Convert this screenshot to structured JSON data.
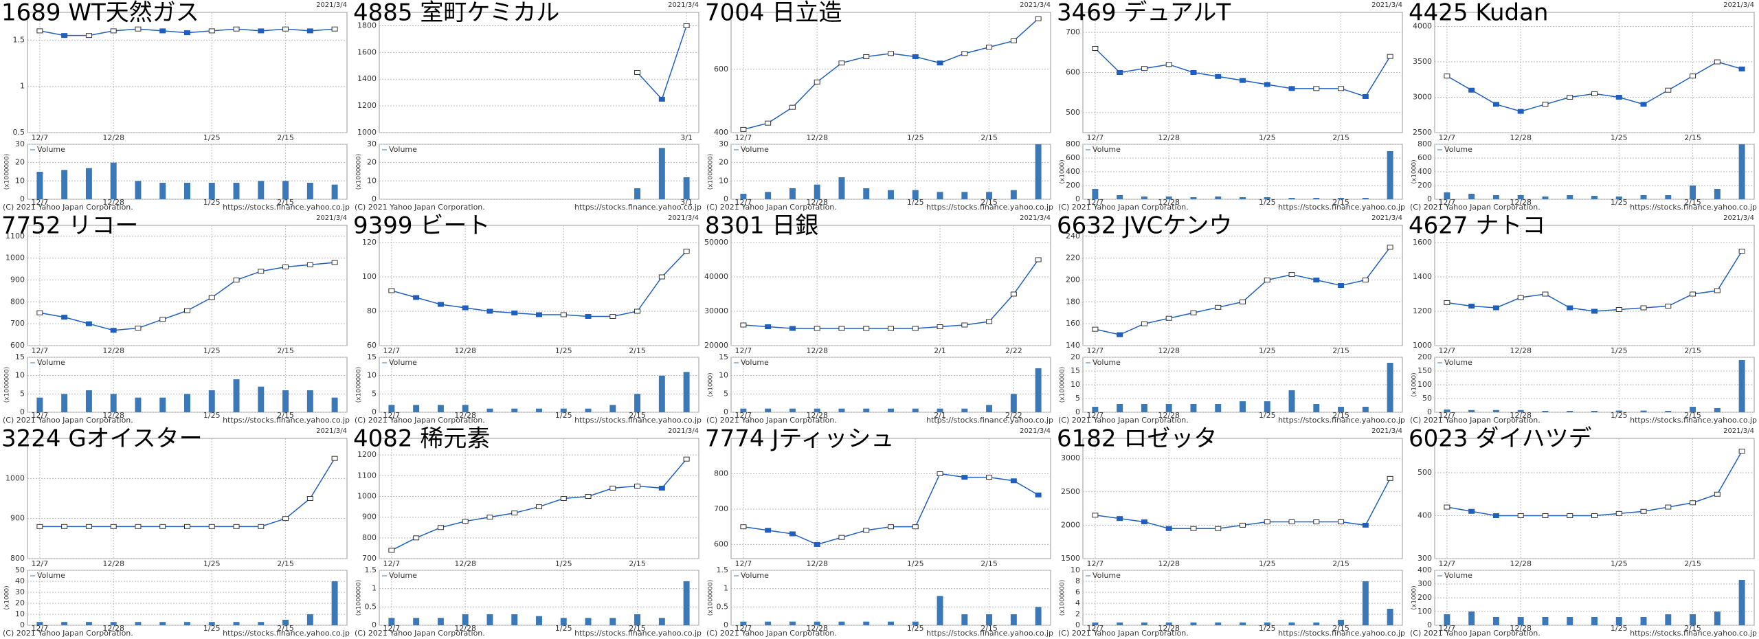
{
  "footer": {
    "copyright": "(C) 2021 Yahoo Japan Corporation.",
    "url": "https://stocks.finance.yahoo.co.jp",
    "volume_legend": "Volume"
  },
  "chart_data": [
    {
      "type": "line",
      "title": "1689 WT天然ガス",
      "date": "2021/3/4",
      "categories": [
        "12/7",
        null,
        null,
        "12/28",
        null,
        null,
        null,
        "1/25",
        null,
        null,
        "2/15",
        null,
        null
      ],
      "values": [
        1.6,
        1.55,
        1.55,
        1.6,
        1.62,
        1.6,
        1.58,
        1.6,
        1.62,
        1.6,
        1.62,
        1.6,
        1.62
      ],
      "ylim": [
        0.5,
        1.8
      ],
      "yticks": [
        0.5,
        1,
        1.5
      ],
      "color": "#1f5fbf",
      "grid": true,
      "volume": {
        "label": "(x1000000)",
        "values": [
          15,
          16,
          17,
          20,
          10,
          9,
          9,
          9,
          9,
          10,
          10,
          9,
          8
        ],
        "ylim": [
          0,
          30
        ],
        "yticks": [
          0,
          10,
          20,
          30
        ],
        "color": "#3a78b8"
      }
    },
    {
      "type": "line",
      "title": "4885 室町ケミカル",
      "date": "2021/3/4",
      "categories": [
        null,
        null,
        null,
        null,
        null,
        null,
        null,
        null,
        null,
        null,
        null,
        null,
        "3/1"
      ],
      "values": [
        null,
        null,
        null,
        null,
        null,
        null,
        null,
        null,
        null,
        null,
        1450,
        1250,
        1800
      ],
      "ylim": [
        1000,
        1900
      ],
      "yticks": [
        1000,
        1200,
        1400,
        1600,
        1800
      ],
      "color": "#1f5fbf",
      "grid": true,
      "volume": {
        "label": "(x1000000)",
        "values": [
          null,
          null,
          null,
          null,
          null,
          null,
          null,
          null,
          null,
          null,
          6,
          28,
          12
        ],
        "ylim": [
          0,
          30
        ],
        "yticks": [
          0,
          10,
          20,
          30
        ],
        "color": "#3a78b8"
      }
    },
    {
      "type": "line",
      "title": "7004 日立造",
      "date": "2021/3/4",
      "categories": [
        "12/7",
        null,
        null,
        "12/28",
        null,
        null,
        null,
        "1/25",
        null,
        null,
        "2/15",
        null,
        null
      ],
      "values": [
        410,
        430,
        480,
        560,
        620,
        640,
        650,
        640,
        620,
        650,
        670,
        690,
        760
      ],
      "ylim": [
        400,
        780
      ],
      "yticks": [
        400,
        600
      ],
      "color": "#1f5fbf",
      "grid": true,
      "volume": {
        "label": "(x1000000)",
        "values": [
          3,
          4,
          6,
          8,
          12,
          6,
          5,
          5,
          4,
          4,
          4,
          5,
          30
        ],
        "ylim": [
          0,
          30
        ],
        "yticks": [
          0,
          10,
          20,
          30
        ],
        "color": "#3a78b8"
      }
    },
    {
      "type": "line",
      "title": "3469 デュアルT",
      "date": "2021/3/4",
      "categories": [
        "12/7",
        null,
        null,
        "12/28",
        null,
        null,
        null,
        "1/25",
        null,
        null,
        "2/15",
        null,
        null
      ],
      "values": [
        660,
        600,
        610,
        620,
        600,
        590,
        580,
        570,
        560,
        560,
        560,
        540,
        640
      ],
      "ylim": [
        450,
        750
      ],
      "yticks": [
        500,
        600,
        700
      ],
      "color": "#1f5fbf",
      "grid": true,
      "volume": {
        "label": "(x1000)",
        "values": [
          150,
          60,
          40,
          40,
          30,
          40,
          30,
          30,
          20,
          20,
          20,
          20,
          700
        ],
        "ylim": [
          0,
          800
        ],
        "yticks": [
          0,
          200,
          400,
          600,
          800
        ],
        "color": "#3a78b8"
      }
    },
    {
      "type": "line",
      "title": "4425 Kudan",
      "date": "2021/3/4",
      "categories": [
        "12/7",
        null,
        null,
        "12/28",
        null,
        null,
        null,
        "1/25",
        null,
        null,
        "2/15",
        null,
        null
      ],
      "values": [
        3300,
        3100,
        2900,
        2800,
        2900,
        3000,
        3050,
        3000,
        2900,
        3100,
        3300,
        3500,
        3400
      ],
      "ylim": [
        2500,
        4200
      ],
      "yticks": [
        2500,
        3000,
        3500,
        4000
      ],
      "color": "#1f5fbf",
      "grid": true,
      "volume": {
        "label": "(x1000)",
        "values": [
          100,
          80,
          60,
          60,
          40,
          60,
          50,
          40,
          60,
          60,
          200,
          150,
          800
        ],
        "ylim": [
          0,
          800
        ],
        "yticks": [
          0,
          200,
          400,
          600,
          800
        ],
        "color": "#3a78b8"
      }
    },
    {
      "type": "line",
      "title": "7752 リコー",
      "date": "2021/3/4",
      "categories": [
        "12/7",
        null,
        null,
        "12/28",
        null,
        null,
        null,
        "1/25",
        null,
        null,
        "2/15",
        null,
        null
      ],
      "values": [
        750,
        730,
        700,
        670,
        680,
        720,
        760,
        820,
        900,
        940,
        960,
        970,
        980
      ],
      "ylim": [
        600,
        1150
      ],
      "yticks": [
        600,
        700,
        800,
        900,
        1000,
        1100
      ],
      "color": "#1f5fbf",
      "grid": true,
      "volume": {
        "label": "(x1000000)",
        "values": [
          4,
          5,
          6,
          5,
          4,
          4,
          5,
          6,
          9,
          7,
          6,
          6,
          4
        ],
        "ylim": [
          0,
          15
        ],
        "yticks": [
          0,
          5,
          10,
          15
        ],
        "color": "#3a78b8"
      }
    },
    {
      "type": "line",
      "title": "9399 ビート",
      "date": "2021/3/4",
      "categories": [
        "12/7",
        null,
        null,
        "12/28",
        null,
        null,
        null,
        "1/25",
        null,
        null,
        "2/15",
        null,
        null
      ],
      "values": [
        92,
        88,
        84,
        82,
        80,
        79,
        78,
        78,
        77,
        77,
        80,
        100,
        115
      ],
      "ylim": [
        60,
        130
      ],
      "yticks": [
        60,
        80,
        100,
        120
      ],
      "color": "#1f5fbf",
      "grid": true,
      "volume": {
        "label": "(x1000000)",
        "values": [
          2,
          2,
          2,
          2,
          1,
          1,
          1,
          1,
          1,
          2,
          5,
          10,
          11
        ],
        "ylim": [
          0,
          15
        ],
        "yticks": [
          0,
          5,
          10,
          15
        ],
        "color": "#3a78b8"
      }
    },
    {
      "type": "line",
      "title": "8301 日銀",
      "date": "2021/3/4",
      "categories": [
        "12/7",
        null,
        null,
        "12/28",
        null,
        null,
        null,
        null,
        "2/1",
        null,
        null,
        "2/22",
        null
      ],
      "values": [
        26000,
        25500,
        25000,
        25000,
        25000,
        25000,
        25000,
        25000,
        25500,
        26000,
        27000,
        35000,
        45000
      ],
      "ylim": [
        20000,
        55000
      ],
      "yticks": [
        20000,
        30000,
        40000,
        50000
      ],
      "color": "#1f5fbf",
      "grid": true,
      "volume": {
        "label": "(x1000)",
        "values": [
          1,
          1,
          1,
          1,
          1,
          1,
          1,
          1,
          1,
          1,
          2,
          5,
          12
        ],
        "ylim": [
          0,
          15
        ],
        "yticks": [
          0,
          5,
          10,
          15
        ],
        "color": "#3a78b8"
      }
    },
    {
      "type": "line",
      "title": "6632 JVCケンウ",
      "date": "2021/3/4",
      "categories": [
        "12/7",
        null,
        null,
        "12/28",
        null,
        null,
        null,
        "1/25",
        null,
        null,
        "2/15",
        null,
        null
      ],
      "values": [
        155,
        150,
        160,
        165,
        170,
        175,
        180,
        200,
        205,
        200,
        195,
        200,
        230
      ],
      "ylim": [
        140,
        250
      ],
      "yticks": [
        140,
        160,
        180,
        200,
        220,
        240
      ],
      "color": "#1f5fbf",
      "grid": true,
      "volume": {
        "label": "(x1000000)",
        "values": [
          2,
          3,
          3,
          3,
          3,
          3,
          4,
          4,
          8,
          3,
          2,
          2,
          18
        ],
        "ylim": [
          0,
          20
        ],
        "yticks": [
          0,
          5,
          10,
          15,
          20
        ],
        "color": "#3a78b8"
      }
    },
    {
      "type": "line",
      "title": "4627 ナトコ",
      "date": "2021/3/4",
      "categories": [
        "12/7",
        null,
        null,
        "12/28",
        null,
        null,
        null,
        "1/25",
        null,
        null,
        "2/15",
        null,
        null
      ],
      "values": [
        1250,
        1230,
        1220,
        1280,
        1300,
        1220,
        1200,
        1210,
        1220,
        1230,
        1300,
        1320,
        1550
      ],
      "ylim": [
        1000,
        1700
      ],
      "yticks": [
        1000,
        1200,
        1400,
        1600
      ],
      "color": "#1f5fbf",
      "grid": true,
      "volume": {
        "label": "(x1000)",
        "values": [
          10,
          8,
          8,
          8,
          5,
          5,
          5,
          6,
          6,
          5,
          20,
          15,
          190
        ],
        "ylim": [
          0,
          200
        ],
        "yticks": [
          0,
          50,
          100,
          150,
          200
        ],
        "color": "#3a78b8"
      }
    },
    {
      "type": "line",
      "title": "3224 Gオイスター",
      "date": "2021/3/4",
      "categories": [
        "12/7",
        null,
        null,
        "12/28",
        null,
        null,
        null,
        "1/25",
        null,
        null,
        "2/15",
        null,
        null
      ],
      "values": [
        880,
        880,
        880,
        880,
        880,
        880,
        880,
        880,
        880,
        880,
        900,
        950,
        1050
      ],
      "ylim": [
        800,
        1100
      ],
      "yticks": [
        800,
        900,
        1000
      ],
      "color": "#1f5fbf",
      "grid": true,
      "volume": {
        "label": "(x1000)",
        "values": [
          3,
          3,
          3,
          3,
          3,
          3,
          3,
          3,
          3,
          3,
          5,
          10,
          40
        ],
        "ylim": [
          0,
          50
        ],
        "yticks": [
          0,
          10,
          20,
          30,
          40,
          50
        ],
        "color": "#3a78b8"
      }
    },
    {
      "type": "line",
      "title": "4082 稀元素",
      "date": "2021/3/4",
      "categories": [
        "12/7",
        null,
        null,
        "12/28",
        null,
        null,
        null,
        "1/25",
        null,
        null,
        "2/15",
        null,
        null
      ],
      "values": [
        740,
        800,
        850,
        880,
        900,
        920,
        950,
        990,
        1000,
        1040,
        1050,
        1040,
        1180
      ],
      "ylim": [
        700,
        1280
      ],
      "yticks": [
        700,
        800,
        900,
        1000,
        1100,
        1200
      ],
      "color": "#1f5fbf",
      "grid": true,
      "volume": {
        "label": "(x1000000)",
        "values": [
          0.2,
          0.2,
          0.2,
          0.3,
          0.3,
          0.3,
          0.25,
          0.2,
          0.2,
          0.2,
          0.3,
          0.2,
          1.2
        ],
        "ylim": [
          0,
          1.5
        ],
        "yticks": [
          0,
          0.5,
          1,
          1.5
        ],
        "color": "#3a78b8"
      }
    },
    {
      "type": "line",
      "title": "7774 Jティッシュ",
      "date": "2021/3/4",
      "categories": [
        "12/7",
        null,
        null,
        "12/28",
        null,
        null,
        null,
        "1/25",
        null,
        null,
        "2/15",
        null,
        null
      ],
      "values": [
        650,
        640,
        630,
        600,
        620,
        640,
        650,
        650,
        800,
        790,
        790,
        780,
        740
      ],
      "ylim": [
        560,
        900
      ],
      "yticks": [
        600,
        700,
        800
      ],
      "color": "#1f5fbf",
      "grid": true,
      "volume": {
        "label": "(x1000000)",
        "values": [
          0.1,
          0.1,
          0.1,
          0.1,
          0.1,
          0.1,
          0.1,
          0.1,
          0.8,
          0.3,
          0.3,
          0.3,
          0.5
        ],
        "ylim": [
          0,
          1.5
        ],
        "yticks": [
          0,
          0.5,
          1,
          1.5
        ],
        "color": "#3a78b8"
      }
    },
    {
      "type": "line",
      "title": "6182 ロゼッタ",
      "date": "2021/3/4",
      "categories": [
        "12/7",
        null,
        null,
        "12/28",
        null,
        null,
        null,
        "1/25",
        null,
        null,
        "2/15",
        null,
        null
      ],
      "values": [
        2150,
        2100,
        2050,
        1950,
        1950,
        1950,
        2000,
        2050,
        2050,
        2050,
        2050,
        2000,
        2700
      ],
      "ylim": [
        1500,
        3300
      ],
      "yticks": [
        1500,
        2000,
        2500,
        3000
      ],
      "color": "#1f5fbf",
      "grid": true,
      "volume": {
        "label": "(x1000000)",
        "values": [
          0.5,
          0.5,
          0.5,
          0.5,
          0.5,
          0.5,
          0.5,
          0.5,
          0.5,
          0.5,
          1,
          8,
          3
        ],
        "ylim": [
          0,
          10
        ],
        "yticks": [
          0,
          2,
          4,
          6,
          8,
          10
        ],
        "color": "#3a78b8"
      }
    },
    {
      "type": "line",
      "title": "6023 ダイハツデ",
      "date": "2021/3/4",
      "categories": [
        "12/7",
        null,
        null,
        "12/28",
        null,
        null,
        null,
        "1/25",
        null,
        null,
        "2/15",
        null,
        null
      ],
      "values": [
        420,
        410,
        400,
        400,
        400,
        400,
        400,
        405,
        410,
        420,
        430,
        450,
        550
      ],
      "ylim": [
        300,
        580
      ],
      "yticks": [
        300,
        400,
        500
      ],
      "color": "#1f5fbf",
      "grid": true,
      "volume": {
        "label": "(x1000)",
        "values": [
          80,
          100,
          60,
          60,
          60,
          60,
          60,
          60,
          60,
          80,
          80,
          100,
          330
        ],
        "ylim": [
          0,
          400
        ],
        "yticks": [
          0,
          100,
          200,
          300,
          400
        ],
        "color": "#3a78b8"
      }
    }
  ]
}
